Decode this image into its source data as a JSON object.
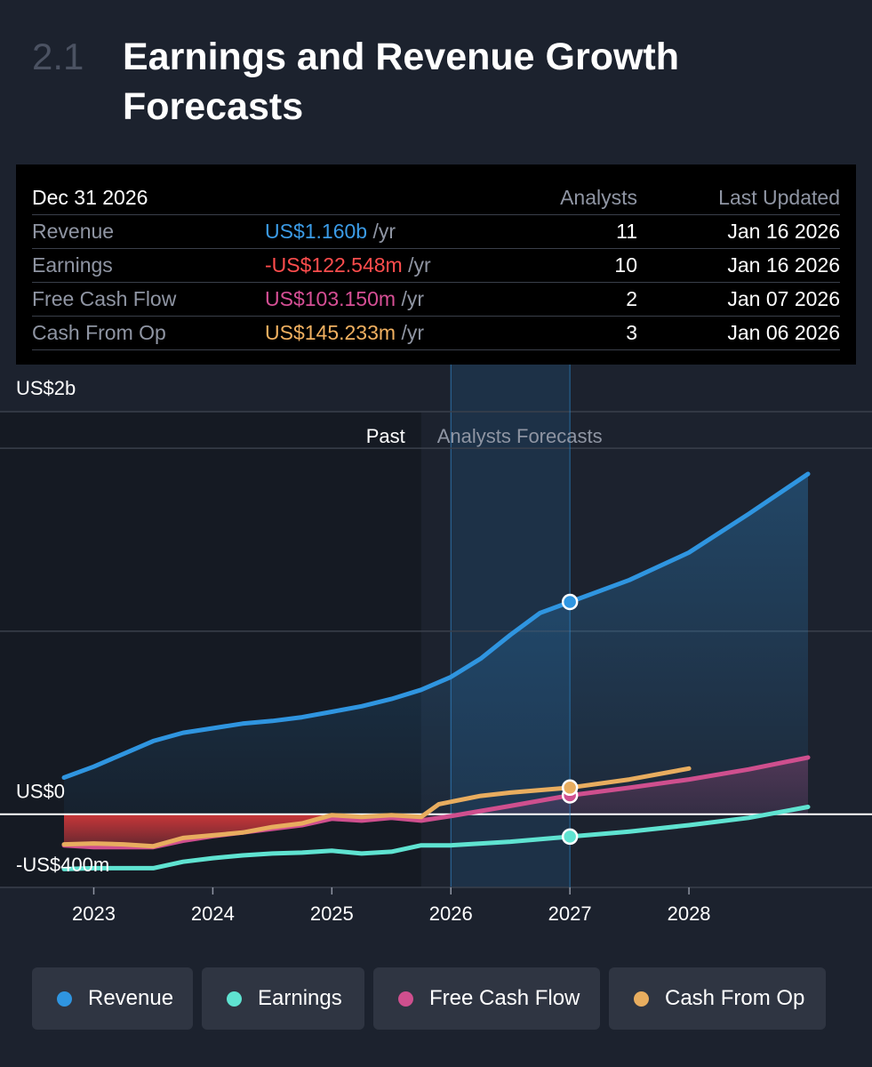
{
  "header": {
    "section_number": "2.1",
    "title": "Earnings and Revenue Growth Forecasts"
  },
  "tooltip": {
    "date": "Dec 31 2026",
    "analysts_header": "Analysts",
    "updated_header": "Last Updated",
    "rows": [
      {
        "label": "Revenue",
        "value": "US$1.160b",
        "unit": "/yr",
        "analysts": "11",
        "updated": "Jan 16 2026",
        "color": "#3b9be6"
      },
      {
        "label": "Earnings",
        "value": "-US$122.548m",
        "unit": "/yr",
        "analysts": "10",
        "updated": "Jan 16 2026",
        "color": "#ff4d4d"
      },
      {
        "label": "Free Cash Flow",
        "value": "US$103.150m",
        "unit": "/yr",
        "analysts": "2",
        "updated": "Jan 07 2026",
        "color": "#d64f95"
      },
      {
        "label": "Cash From Op",
        "value": "US$145.233m",
        "unit": "/yr",
        "analysts": "3",
        "updated": "Jan 06 2026",
        "color": "#f0b060"
      }
    ]
  },
  "legend": [
    {
      "label": "Revenue",
      "color": "#2f95e0"
    },
    {
      "label": "Earnings",
      "color": "#5fe3d1"
    },
    {
      "label": "Free Cash Flow",
      "color": "#cf4f8e"
    },
    {
      "label": "Cash From Op",
      "color": "#e8ad5f"
    }
  ],
  "chart_data": {
    "type": "line",
    "title": "Earnings and Revenue Growth Forecasts",
    "y_labels": {
      "top": "US$2b",
      "zero": "US$0",
      "bottom": "-US$400m"
    },
    "ylim": [
      -400,
      2200
    ],
    "xlim": [
      2022.75,
      2029.0
    ],
    "x_ticks": [
      2023,
      2024,
      2025,
      2026,
      2027,
      2028
    ],
    "x_tick_labels": [
      "2023",
      "2024",
      "2025",
      "2026",
      "2027",
      "2028"
    ],
    "gridlines": [
      -400,
      1000,
      2000
    ],
    "past_label": "Past",
    "forecast_label": "Analysts Forecasts",
    "past_end": 2025.75,
    "forecast_band": [
      2026.0,
      2027.0
    ],
    "marker_x": 2027.0,
    "series": [
      {
        "name": "Revenue",
        "color": "#2f95e0",
        "markers": [
          2027.0
        ],
        "points": [
          [
            2022.75,
            200
          ],
          [
            2023.0,
            260
          ],
          [
            2023.25,
            330
          ],
          [
            2023.5,
            400
          ],
          [
            2023.75,
            445
          ],
          [
            2024.0,
            470
          ],
          [
            2024.25,
            495
          ],
          [
            2024.5,
            510
          ],
          [
            2024.75,
            530
          ],
          [
            2025.0,
            560
          ],
          [
            2025.25,
            590
          ],
          [
            2025.5,
            630
          ],
          [
            2025.75,
            680
          ],
          [
            2026.0,
            750
          ],
          [
            2026.25,
            850
          ],
          [
            2026.5,
            980
          ],
          [
            2026.75,
            1100
          ],
          [
            2027.0,
            1160
          ],
          [
            2027.5,
            1280
          ],
          [
            2028.0,
            1430
          ],
          [
            2028.5,
            1640
          ],
          [
            2029.0,
            1860
          ]
        ]
      },
      {
        "name": "Earnings",
        "color": "#5fe3d1",
        "markers": [
          2027.0
        ],
        "points": [
          [
            2022.75,
            -300
          ],
          [
            2023.0,
            -295
          ],
          [
            2023.25,
            -295
          ],
          [
            2023.5,
            -295
          ],
          [
            2023.75,
            -260
          ],
          [
            2024.0,
            -240
          ],
          [
            2024.25,
            -225
          ],
          [
            2024.5,
            -215
          ],
          [
            2024.75,
            -210
          ],
          [
            2025.0,
            -200
          ],
          [
            2025.25,
            -215
          ],
          [
            2025.5,
            -205
          ],
          [
            2025.75,
            -170
          ],
          [
            2026.0,
            -170
          ],
          [
            2026.5,
            -150
          ],
          [
            2027.0,
            -122.5
          ],
          [
            2027.5,
            -95
          ],
          [
            2028.0,
            -60
          ],
          [
            2028.5,
            -20
          ],
          [
            2029.0,
            40
          ]
        ]
      },
      {
        "name": "Free Cash Flow",
        "color": "#cf4f8e",
        "markers": [
          2027.0
        ],
        "points": [
          [
            2022.75,
            -170
          ],
          [
            2023.0,
            -180
          ],
          [
            2023.25,
            -180
          ],
          [
            2023.5,
            -180
          ],
          [
            2023.75,
            -145
          ],
          [
            2024.0,
            -120
          ],
          [
            2024.25,
            -100
          ],
          [
            2024.5,
            -80
          ],
          [
            2024.75,
            -60
          ],
          [
            2025.0,
            -25
          ],
          [
            2025.25,
            -35
          ],
          [
            2025.5,
            -20
          ],
          [
            2025.75,
            -35
          ],
          [
            2026.0,
            -10
          ],
          [
            2026.5,
            45
          ],
          [
            2027.0,
            103.15
          ],
          [
            2027.5,
            145
          ],
          [
            2028.0,
            190
          ],
          [
            2028.5,
            245
          ],
          [
            2029.0,
            310
          ]
        ]
      },
      {
        "name": "Cash From Op",
        "color": "#e8ad5f",
        "markers": [
          2027.0
        ],
        "points": [
          [
            2022.75,
            -165
          ],
          [
            2023.0,
            -160
          ],
          [
            2023.25,
            -165
          ],
          [
            2023.5,
            -175
          ],
          [
            2023.75,
            -130
          ],
          [
            2024.0,
            -115
          ],
          [
            2024.25,
            -100
          ],
          [
            2024.5,
            -70
          ],
          [
            2024.75,
            -50
          ],
          [
            2025.0,
            -5
          ],
          [
            2025.25,
            -15
          ],
          [
            2025.5,
            -5
          ],
          [
            2025.75,
            -15
          ],
          [
            2025.9,
            55
          ],
          [
            2026.25,
            100
          ],
          [
            2026.5,
            118
          ],
          [
            2027.0,
            145.23
          ],
          [
            2027.5,
            190
          ],
          [
            2028.0,
            250
          ]
        ]
      }
    ]
  }
}
